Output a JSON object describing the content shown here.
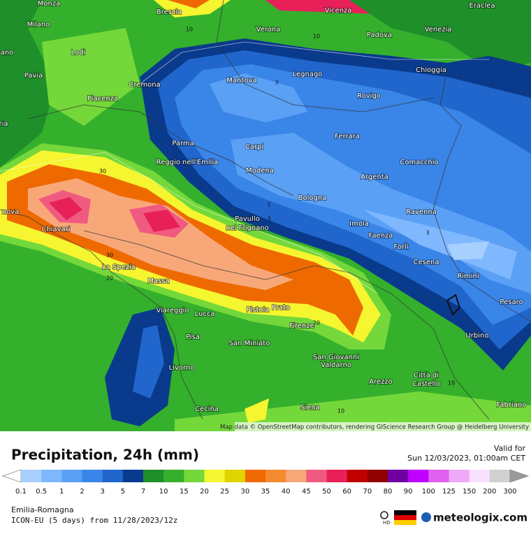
{
  "map": {
    "cities": [
      "Monza",
      "Brescia",
      "Vicenza",
      "Eraclea",
      "Milano",
      "Verona",
      "Padova",
      "Venezia",
      "ano",
      "Lodi",
      "Mantova",
      "Legnago",
      "Chioggia",
      "Pavia",
      "Cremona",
      "Rovigo",
      "Piacenza",
      "ria",
      "Ferrara",
      "Parma",
      "Carpi",
      "Comacchio",
      "Reggio nell'Emilia",
      "Modena",
      "Argenta",
      "Bologna",
      "nova",
      "Ravenna",
      "Pavullo",
      "nel Frignano",
      "Imola",
      "Chiavari",
      "Faenza",
      "Forlì",
      "Cesena",
      "La Spezia",
      "Rimini",
      "Massa",
      "Pesaro",
      "Viareggio",
      "Lucca",
      "Pistoia",
      "Prato",
      "Firenze",
      "Urbino",
      "Pisa",
      "San Miniato",
      "San Giovanni",
      "Valdarno",
      "Livorno",
      "Arezzo",
      "Città di",
      "Castello",
      "Fabriano",
      "Cecina",
      "Siena"
    ],
    "contour_labels": [
      "10",
      "10",
      "3",
      "30",
      "1",
      "3",
      "30",
      "20",
      "20",
      "3",
      "10",
      "10"
    ],
    "attribution": "Map data © OpenStreetMap contributors, rendering GIScience Research Group @ Heidelberg University"
  },
  "header": {
    "title": "Precipitation, 24h (mm)",
    "valid_label": "Valid for",
    "valid_time": "Sun 12/03/2023, 01:00am CET"
  },
  "legend": {
    "ticks": [
      "0.1",
      "0.5",
      "1",
      "2",
      "3",
      "5",
      "7",
      "10",
      "15",
      "20",
      "25",
      "30",
      "35",
      "40",
      "45",
      "50",
      "60",
      "70",
      "80",
      "90",
      "100",
      "125",
      "150",
      "200",
      "300"
    ],
    "colors": [
      "#a8d0ff",
      "#80b8ff",
      "#5aa0f5",
      "#3a85e8",
      "#2066cc",
      "#0a3a8c",
      "#1f8f2a",
      "#34b02c",
      "#74d83a",
      "#f5f530",
      "#e0d400",
      "#ee6a00",
      "#f58a30",
      "#f8a878",
      "#f05a80",
      "#e8205a",
      "#c00000",
      "#900000",
      "#7000a0",
      "#c000ff",
      "#e060f0",
      "#f0a8f8",
      "#f8e0ff",
      "#d0d0d0"
    ]
  },
  "footer": {
    "region": "Emilia-Romagna",
    "model": "ICON-EU (5 days) from 11/28/2023/12z",
    "hd": "HD",
    "brand": "meteologix.com"
  }
}
